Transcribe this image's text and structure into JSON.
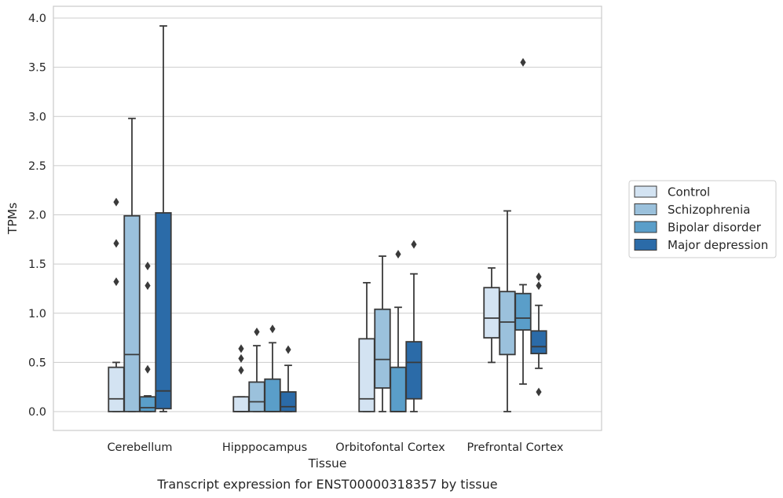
{
  "chart_data": {
    "type": "box",
    "title": "",
    "caption": "Transcript expression for ENST00000318357 by tissue",
    "xlabel": "Tissue",
    "ylabel": "TPMs",
    "ylim": [
      -0.19,
      4.12
    ],
    "yticks": [
      "0.0",
      "0.5",
      "1.0",
      "1.5",
      "2.0",
      "2.5",
      "3.0",
      "3.5",
      "4.0"
    ],
    "grid": "horizontal",
    "legend_placement": "right",
    "categories": [
      "Cerebellum",
      "Hipppocampus",
      "Orbitofontal Cortex",
      "Prefrontal Cortex"
    ],
    "series": [
      {
        "name": "Control",
        "color": "#d3e3f2",
        "boxes": [
          {
            "whislo": 0.0,
            "q1": 0.0,
            "med": 0.13,
            "q3": 0.45,
            "whishi": 0.5,
            "fliers": [
              1.32,
              1.71,
              2.13
            ]
          },
          {
            "whislo": 0.0,
            "q1": 0.0,
            "med": 0.0,
            "q3": 0.15,
            "whishi": 0.15,
            "fliers": [
              0.42,
              0.54,
              0.64
            ]
          },
          {
            "whislo": 0.0,
            "q1": 0.0,
            "med": 0.13,
            "q3": 0.74,
            "whishi": 1.31,
            "fliers": []
          },
          {
            "whislo": 0.5,
            "q1": 0.75,
            "med": 0.95,
            "q3": 1.26,
            "whishi": 1.46,
            "fliers": []
          }
        ]
      },
      {
        "name": "Schizophrenia",
        "color": "#9bc1dc",
        "boxes": [
          {
            "whislo": 0.0,
            "q1": 0.0,
            "med": 0.58,
            "q3": 1.99,
            "whishi": 2.98,
            "fliers": []
          },
          {
            "whislo": 0.0,
            "q1": 0.0,
            "med": 0.1,
            "q3": 0.3,
            "whishi": 0.67,
            "fliers": [
              0.81
            ]
          },
          {
            "whislo": 0.0,
            "q1": 0.24,
            "med": 0.53,
            "q3": 1.04,
            "whishi": 1.58,
            "fliers": []
          },
          {
            "whislo": 0.0,
            "q1": 0.58,
            "med": 0.91,
            "q3": 1.22,
            "whishi": 2.04,
            "fliers": []
          }
        ]
      },
      {
        "name": "Bipolar disorder",
        "color": "#5a9ec9",
        "boxes": [
          {
            "whislo": 0.0,
            "q1": 0.0,
            "med": 0.04,
            "q3": 0.15,
            "whishi": 0.16,
            "fliers": [
              0.43,
              1.28,
              1.48
            ]
          },
          {
            "whislo": 0.0,
            "q1": 0.0,
            "med": 0.0,
            "q3": 0.33,
            "whishi": 0.7,
            "fliers": [
              0.84
            ]
          },
          {
            "whislo": 0.0,
            "q1": 0.0,
            "med": 0.0,
            "q3": 0.45,
            "whishi": 1.06,
            "fliers": [
              1.6
            ]
          },
          {
            "whislo": 0.28,
            "q1": 0.83,
            "med": 0.95,
            "q3": 1.2,
            "whishi": 1.29,
            "fliers": [
              3.55
            ]
          }
        ]
      },
      {
        "name": "Major depression",
        "color": "#2b6ba8",
        "boxes": [
          {
            "whislo": 0.0,
            "q1": 0.03,
            "med": 0.21,
            "q3": 2.02,
            "whishi": 3.92,
            "fliers": []
          },
          {
            "whislo": 0.0,
            "q1": 0.0,
            "med": 0.05,
            "q3": 0.2,
            "whishi": 0.47,
            "fliers": [
              0.63
            ]
          },
          {
            "whislo": 0.0,
            "q1": 0.13,
            "med": 0.5,
            "q3": 0.71,
            "whishi": 1.4,
            "fliers": [
              1.7
            ]
          },
          {
            "whislo": 0.44,
            "q1": 0.59,
            "med": 0.66,
            "q3": 0.82,
            "whishi": 1.08,
            "fliers": [
              0.2,
              1.28,
              1.37
            ]
          }
        ]
      }
    ]
  }
}
